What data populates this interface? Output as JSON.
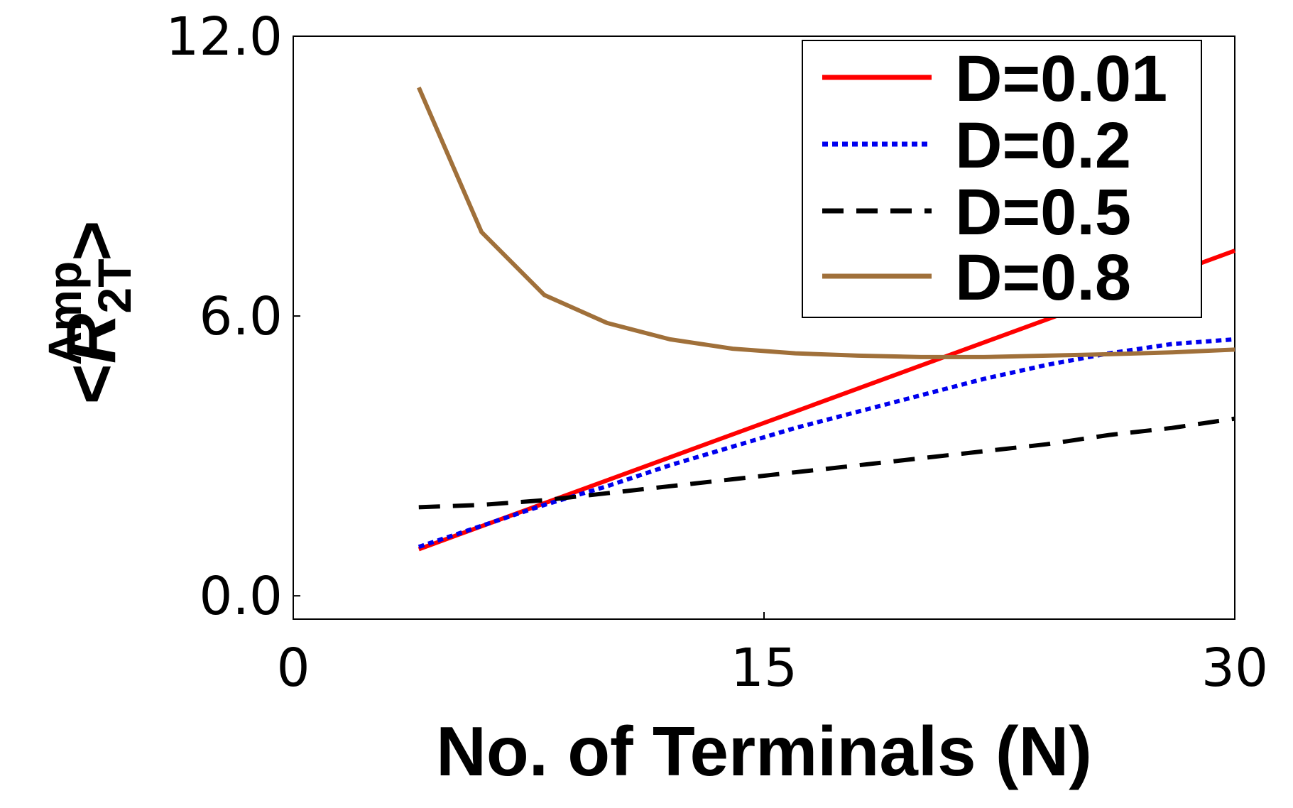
{
  "chart_data": {
    "type": "line",
    "title": "",
    "xlabel": "No. of Terminals (N)",
    "ylabel": {
      "open": "<",
      "symbol": "R",
      "subscript": "2T",
      "superscript": "Amp",
      "close": ">"
    },
    "xlim": [
      0,
      30
    ],
    "ylim": [
      -0.5,
      12
    ],
    "xticks": [
      0,
      15,
      30
    ],
    "xtick_labels": [
      "0",
      "15",
      "30"
    ],
    "yticks": [
      0,
      6,
      12
    ],
    "ytick_labels": [
      "0.0",
      "6.0",
      "12.0"
    ],
    "grid": false,
    "legend": "top-right",
    "series": [
      {
        "name": "D=0.01",
        "color": "#ff0000",
        "dash": "solid",
        "x": [
          4,
          30
        ],
        "y": [
          1.0,
          7.4
        ]
      },
      {
        "name": "D=0.2",
        "color": "#0000ee",
        "dash": "dotted",
        "x": [
          4,
          6,
          8,
          10,
          12,
          14,
          16,
          18,
          20,
          22,
          24,
          26,
          28,
          30
        ],
        "y": [
          1.05,
          1.5,
          1.95,
          2.35,
          2.8,
          3.2,
          3.6,
          3.95,
          4.3,
          4.65,
          4.95,
          5.2,
          5.4,
          5.5
        ]
      },
      {
        "name": "D=0.5",
        "color": "#000000",
        "dash": "dashed",
        "x": [
          4,
          6,
          8,
          10,
          12,
          14,
          16,
          18,
          20,
          22,
          24,
          26,
          28,
          30
        ],
        "y": [
          1.9,
          1.95,
          2.05,
          2.2,
          2.35,
          2.5,
          2.65,
          2.8,
          2.95,
          3.1,
          3.25,
          3.45,
          3.6,
          3.8
        ]
      },
      {
        "name": "D=0.8",
        "color": "#a0703a",
        "dash": "solid",
        "x": [
          4,
          6,
          8,
          10,
          12,
          14,
          16,
          18,
          20,
          22,
          24,
          26,
          28,
          30
        ],
        "y": [
          10.9,
          7.8,
          6.45,
          5.85,
          5.5,
          5.3,
          5.2,
          5.15,
          5.12,
          5.12,
          5.15,
          5.18,
          5.22,
          5.28
        ]
      }
    ]
  }
}
